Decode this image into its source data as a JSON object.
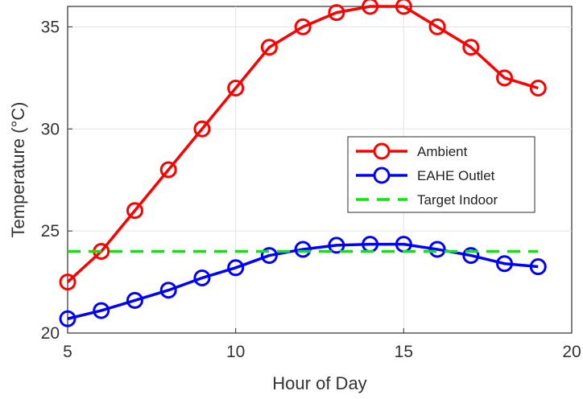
{
  "chart_data": {
    "type": "line",
    "title": "",
    "xlabel": "Hour of Day",
    "ylabel": "Temperature (°C)",
    "xlim": [
      5,
      20
    ],
    "ylim": [
      20,
      36
    ],
    "xticks": [
      5,
      10,
      15,
      20
    ],
    "yticks": [
      20,
      25,
      30,
      35
    ],
    "grid": true,
    "legend_position": "center-right",
    "series": [
      {
        "name": "Ambient",
        "color": "#ff0000",
        "marker": "circle",
        "style": "solid",
        "x": [
          5,
          6,
          7,
          8,
          9,
          10,
          11,
          12,
          13,
          14,
          15,
          16,
          17,
          18,
          19
        ],
        "y": [
          22.5,
          24,
          26,
          28,
          30,
          32,
          34,
          35,
          35.7,
          36,
          36,
          35,
          34,
          32.5,
          32
        ]
      },
      {
        "name": "EAHE Outlet",
        "color": "#0000ff",
        "marker": "circle",
        "style": "solid",
        "x": [
          5,
          6,
          7,
          8,
          9,
          10,
          11,
          12,
          13,
          14,
          15,
          16,
          17,
          18,
          19
        ],
        "y": [
          20.7,
          21.1,
          21.6,
          22.1,
          22.7,
          23.2,
          23.8,
          24.1,
          24.3,
          24.35,
          24.35,
          24.1,
          23.8,
          23.4,
          23.25
        ]
      },
      {
        "name": "Target Indoor",
        "color": "#00ee00",
        "marker": "none",
        "style": "dashed",
        "x": [
          5,
          19
        ],
        "y": [
          24,
          24
        ]
      }
    ]
  }
}
